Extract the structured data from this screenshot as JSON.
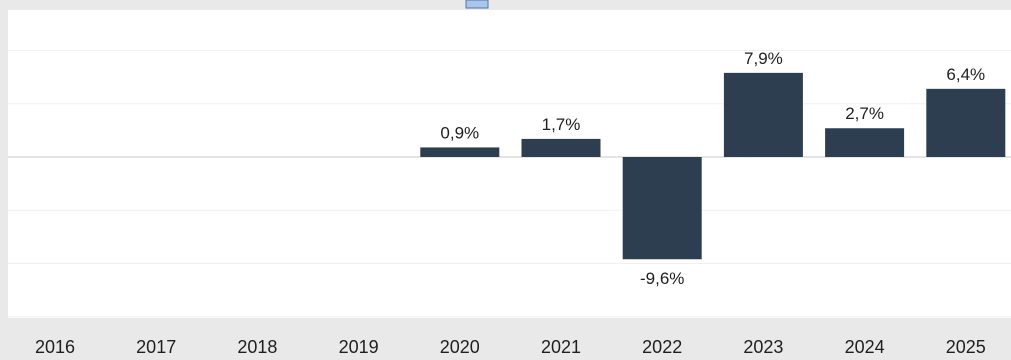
{
  "chart_data": {
    "type": "bar",
    "title": "",
    "xlabel": "",
    "ylabel": "",
    "categories": [
      "2016",
      "2017",
      "2018",
      "2019",
      "2020",
      "2021",
      "2022",
      "2023",
      "2024",
      "2025"
    ],
    "values": [
      null,
      null,
      null,
      null,
      0.9,
      1.7,
      -9.6,
      7.9,
      2.7,
      6.4
    ],
    "data_labels": [
      "",
      "",
      "",
      "",
      "0,9%",
      "1,7%",
      "-9,6%",
      "7,9%",
      "2,7%",
      "6,4%"
    ],
    "ylim": [
      -15,
      10
    ],
    "grid": true,
    "legend": "top-center",
    "colors": {
      "bar": "#2d3e50",
      "plot_background": "#ffffff",
      "page_background": "#e9e9e9",
      "gridline": "#f0f0f0",
      "zero_line": "#c8c8c8",
      "legend_swatch": "#a9c6e8"
    }
  }
}
